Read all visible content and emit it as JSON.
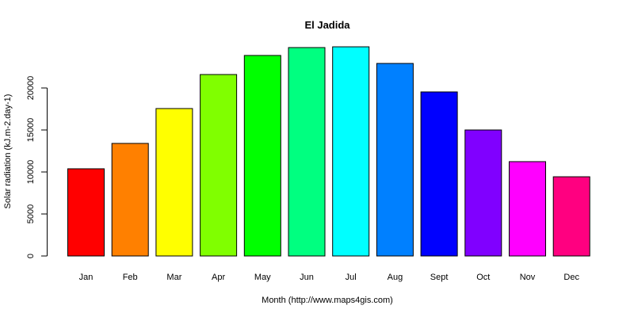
{
  "chart_data": {
    "type": "bar",
    "title": "El Jadida",
    "xlabel": "Month (http://www.maps4gis.com)",
    "ylabel": "Solar radiation (kJ.m-2.day-1)",
    "categories": [
      "Jan",
      "Feb",
      "Mar",
      "Apr",
      "May",
      "Jun",
      "Jul",
      "Aug",
      "Sept",
      "Oct",
      "Nov",
      "Dec"
    ],
    "values": [
      10380,
      13400,
      17550,
      21600,
      23870,
      24810,
      24900,
      22920,
      19530,
      15000,
      11230,
      9430
    ],
    "colors": [
      "#FF0000",
      "#FF8000",
      "#FFFF00",
      "#80FF00",
      "#00FF00",
      "#00FF80",
      "#00FFFF",
      "#0080FF",
      "#0000FF",
      "#8000FF",
      "#FF00FF",
      "#FF0080"
    ],
    "yticks": [
      0,
      5000,
      10000,
      15000,
      20000
    ],
    "ylim": [
      0,
      25000
    ],
    "grid": false,
    "legend": null
  }
}
